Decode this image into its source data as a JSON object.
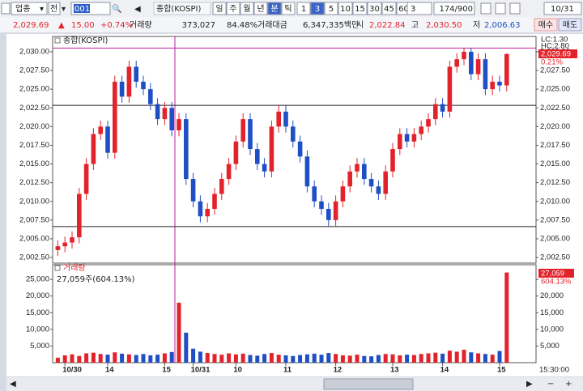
{
  "toolbar": {
    "market": "업종",
    "mode": "전",
    "code": "001",
    "name": "종합(KOSPI)",
    "periods": [
      "일",
      "주",
      "월",
      "년",
      "분",
      "틱"
    ],
    "selected_period": 4,
    "intervals": [
      "1",
      "3",
      "5",
      "10",
      "15",
      "30",
      "45",
      "60"
    ],
    "selected_interval": 1,
    "count_select": "3",
    "count": "174/900",
    "date": "10/31"
  },
  "quote": {
    "price": "2,029.69",
    "change_arrow": "▲",
    "change": "15.00",
    "change_pct": "+0.74%",
    "volume_label": "거래량",
    "volume": "373,027",
    "volume_ratio": "84.48%",
    "amount_label": "거래대금",
    "amount": "6,347,335백만",
    "open_label": "시",
    "open": {
      "value": 2022.84,
      "label": "2,022.84"
    },
    "high_label": "고",
    "high": {
      "value": 2030.5,
      "label": "2,030.50"
    },
    "low_label": "저",
    "low": {
      "value": 2006.63,
      "label": "2,006.63"
    },
    "buy": "매수",
    "sell": "매도"
  },
  "chart_data": {
    "type": "candlestick",
    "categories": [
      null,
      "10/30",
      null,
      null,
      null,
      null,
      null,
      "14",
      null,
      null,
      null,
      null,
      null,
      null,
      null,
      "15",
      null,
      null,
      null,
      "10/31",
      null,
      null,
      null,
      null,
      null,
      "10",
      null,
      null,
      null,
      null,
      null,
      null,
      "11",
      null,
      null,
      null,
      null,
      null,
      null,
      "12",
      null,
      null,
      null,
      null,
      null,
      null,
      null,
      "13",
      null,
      null,
      null,
      null,
      null,
      null,
      "14",
      null,
      null,
      null,
      null,
      null,
      null,
      null,
      "15",
      null
    ],
    "open": [
      2003.5,
      2004.0,
      2004.5,
      2005.2,
      2011.0,
      2015.0,
      2019.0,
      2020.0,
      2016.5,
      2026.0,
      2024.0,
      2028.0,
      2026.0,
      2025.0,
      2023.0,
      2021.0,
      2022.5,
      2019.5,
      2021.0,
      2013.0,
      2010.0,
      2008.0,
      2009.0,
      2011.0,
      2013.0,
      2015.0,
      2018.0,
      2021.0,
      2017.0,
      2015.0,
      2014.0,
      2020.0,
      2022.0,
      2020.0,
      2018.0,
      2016.0,
      2012.0,
      2010.0,
      2009.0,
      2007.5,
      2010.0,
      2012.0,
      2014.0,
      2015.0,
      2013.0,
      2012.0,
      2011.0,
      2014.0,
      2017.0,
      2019.0,
      2018.0,
      2019.0,
      2020.0,
      2021.0,
      2023.0,
      2022.0,
      2028.0,
      2029.0,
      2030.0,
      2027.0,
      2029.0,
      2025.0,
      2026.0,
      2025.5
    ],
    "high": [
      2004.8,
      2005.3,
      2006.0,
      2011.8,
      2015.8,
      2019.8,
      2020.8,
      2020.8,
      2026.8,
      2026.8,
      2028.8,
      2028.8,
      2026.8,
      2025.8,
      2023.8,
      2023.3,
      2023.3,
      2021.8,
      2021.8,
      2013.8,
      2010.8,
      2009.8,
      2011.8,
      2013.8,
      2015.8,
      2018.8,
      2021.8,
      2021.8,
      2017.8,
      2015.8,
      2020.8,
      2022.8,
      2022.8,
      2020.8,
      2018.8,
      2016.8,
      2012.8,
      2010.8,
      2009.8,
      2010.8,
      2012.8,
      2014.8,
      2015.8,
      2015.8,
      2013.8,
      2012.8,
      2014.8,
      2017.8,
      2019.8,
      2019.8,
      2019.8,
      2020.8,
      2021.8,
      2023.8,
      2023.8,
      2028.8,
      2029.8,
      2030.5,
      2030.5,
      2029.8,
      2029.8,
      2026.8,
      2026.8,
      2029.8
    ],
    "low": [
      2002.7,
      2003.2,
      2003.7,
      2004.4,
      2010.2,
      2014.2,
      2018.2,
      2015.7,
      2015.7,
      2023.2,
      2023.2,
      2025.2,
      2024.2,
      2022.2,
      2020.2,
      2020.2,
      2018.7,
      2018.7,
      2012.2,
      2009.2,
      2007.2,
      2007.2,
      2008.2,
      2010.2,
      2012.2,
      2014.2,
      2017.2,
      2016.2,
      2014.2,
      2013.2,
      2013.2,
      2019.2,
      2019.2,
      2017.2,
      2015.2,
      2011.2,
      2009.2,
      2008.2,
      2006.7,
      2006.7,
      2009.2,
      2011.2,
      2013.2,
      2012.2,
      2011.2,
      2010.2,
      2010.2,
      2013.2,
      2016.2,
      2017.2,
      2017.2,
      2018.2,
      2019.2,
      2020.2,
      2021.2,
      2021.2,
      2027.2,
      2028.2,
      2026.2,
      2026.2,
      2024.2,
      2024.2,
      2024.7,
      2024.7
    ],
    "close": [
      2004.0,
      2004.5,
      2005.2,
      2011.0,
      2015.0,
      2019.0,
      2020.0,
      2016.5,
      2026.0,
      2024.0,
      2028.0,
      2026.0,
      2025.0,
      2023.0,
      2021.0,
      2022.5,
      2019.5,
      2021.0,
      2013.0,
      2010.0,
      2008.0,
      2009.0,
      2011.0,
      2013.0,
      2015.0,
      2018.0,
      2021.0,
      2017.0,
      2015.0,
      2014.0,
      2020.0,
      2022.0,
      2020.0,
      2018.0,
      2016.0,
      2012.0,
      2010.0,
      2009.0,
      2007.5,
      2010.0,
      2012.0,
      2014.0,
      2015.0,
      2013.0,
      2012.0,
      2011.0,
      2014.0,
      2017.0,
      2019.0,
      2018.0,
      2019.0,
      2020.0,
      2021.0,
      2023.0,
      2022.0,
      2028.0,
      2029.0,
      2030.0,
      2027.0,
      2029.0,
      2025.0,
      2026.0,
      2025.5,
      2029.69
    ],
    "up_color": "#e3232b",
    "down_color": "#1f4fc4",
    "ylim": [
      2001.75,
      2032.05
    ],
    "yticks": [
      {
        "value": 2002.5,
        "label": "2,002.50"
      },
      {
        "value": 2005,
        "label": "2,005.00"
      },
      {
        "value": 2007.5,
        "label": "2,007.50"
      },
      {
        "value": 2010,
        "label": "2,010.00"
      },
      {
        "value": 2012.5,
        "label": "2,012.50"
      },
      {
        "value": 2015,
        "label": "2,015.00"
      },
      {
        "value": 2017.5,
        "label": "2,017.50"
      },
      {
        "value": 2020,
        "label": "2,020.00"
      },
      {
        "value": 2022.5,
        "label": "2,022.50"
      },
      {
        "value": 2025,
        "label": "2,025.00"
      },
      {
        "value": 2027.5,
        "label": "2,027.50"
      },
      {
        "value": 2030,
        "label": "2,030.00"
      }
    ],
    "grid": false,
    "right_labels": {
      "lc": "LC:1.30",
      "hc": "HC:2.80",
      "change_pct": "0.21%"
    },
    "volume": {
      "name": "거래량",
      "label": "27,059주(604.13%)",
      "last_label": "27,059",
      "last_ratio": "604.13%",
      "values": [
        1500,
        2200,
        2500,
        2000,
        2800,
        3000,
        2600,
        2400,
        3100,
        2700,
        2500,
        2300,
        2600,
        2200,
        2400,
        2800,
        3200,
        18000,
        9000,
        4200,
        3300,
        2900,
        2600,
        2400,
        2800,
        2500,
        2700,
        2300,
        2100,
        2600,
        2900,
        2400,
        2200,
        2000,
        2300,
        2500,
        2700,
        2400,
        2900,
        2600,
        2200,
        2100,
        2400,
        2000,
        1900,
        2300,
        2600,
        2500,
        2200,
        2400,
        2300,
        2600,
        2800,
        3000,
        2700,
        3600,
        3300,
        3900,
        3100,
        2800,
        2600,
        2400,
        3500,
        27059
      ],
      "ylim": [
        0,
        29400
      ],
      "yticks": [
        {
          "value": 5000,
          "label": "5,000"
        },
        {
          "value": 10000,
          "label": "10,000"
        },
        {
          "value": 15000,
          "label": "15,000"
        },
        {
          "value": 20000,
          "label": "20,000"
        },
        {
          "value": 25000,
          "label": "25,000"
        }
      ]
    },
    "end_time": "15:30:00"
  }
}
